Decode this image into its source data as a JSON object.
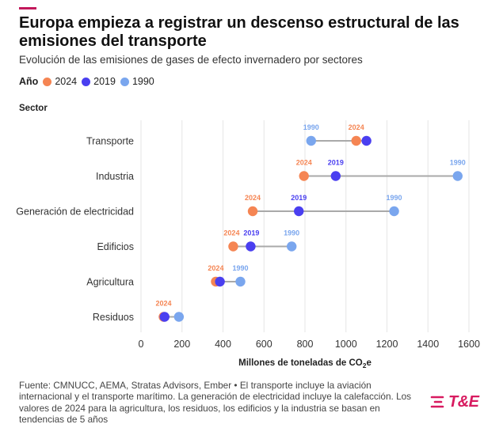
{
  "title": "Europa empieza a registrar un descenso estructural de las emisiones del transporte",
  "subtitle": "Evolución de las emisiones de gases de efecto invernadero por sectores",
  "legend": {
    "title": "Año",
    "items": [
      {
        "label": "2024",
        "color": "#f58553"
      },
      {
        "label": "2019",
        "color": "#4a3ff0"
      },
      {
        "label": "1990",
        "color": "#7aa6ee"
      }
    ]
  },
  "sector_header": "Sector",
  "chart_data": {
    "type": "dumbbell",
    "xlabel_main": "Millones de toneladas de CO",
    "xlabel_sub": "2",
    "xlabel_tail": "e",
    "xlim": [
      0,
      1600
    ],
    "xticks": [
      0,
      200,
      400,
      600,
      800,
      1000,
      1200,
      1400,
      1600
    ],
    "grid": true,
    "series_colors": {
      "2024": "#f58553",
      "2019": "#4a3ff0",
      "1990": "#7aa6ee"
    },
    "categories": [
      "Transporte",
      "Industria",
      "Generación de electricidad",
      "Edificios",
      "Agricultura",
      "Residuos"
    ],
    "series": [
      {
        "name": "1990",
        "values": [
          830,
          1545,
          1235,
          735,
          485,
          185
        ]
      },
      {
        "name": "2019",
        "values": [
          1100,
          950,
          770,
          535,
          385,
          115
        ]
      },
      {
        "name": "2024",
        "values": [
          1050,
          795,
          545,
          450,
          365,
          110
        ]
      }
    ],
    "annotations": [
      {
        "category": "Transporte",
        "labels": [
          "1990",
          "2024"
        ]
      },
      {
        "category": "Industria",
        "labels": [
          "2024",
          "2019",
          "1990"
        ]
      },
      {
        "category": "Generación de electricidad",
        "labels": [
          "2024",
          "2019",
          "1990"
        ]
      },
      {
        "category": "Edificios",
        "labels": [
          "2024",
          "2019",
          "1990"
        ]
      },
      {
        "category": "Agricultura",
        "labels": [
          "2024",
          "1990"
        ]
      },
      {
        "category": "Residuos",
        "labels": [
          "2024"
        ]
      }
    ]
  },
  "footer": "Fuente: CMNUCC, AEMA, Stratas Advisors, Ember • El transporte incluye la aviación internacional y el transporte marítimo. La generación de electricidad incluye la calefacción. Los valores de 2024 para la agricultura, los residuos, los edificios y la industria se basan en tendencias de 5 años",
  "logo": {
    "text": "T&E"
  }
}
